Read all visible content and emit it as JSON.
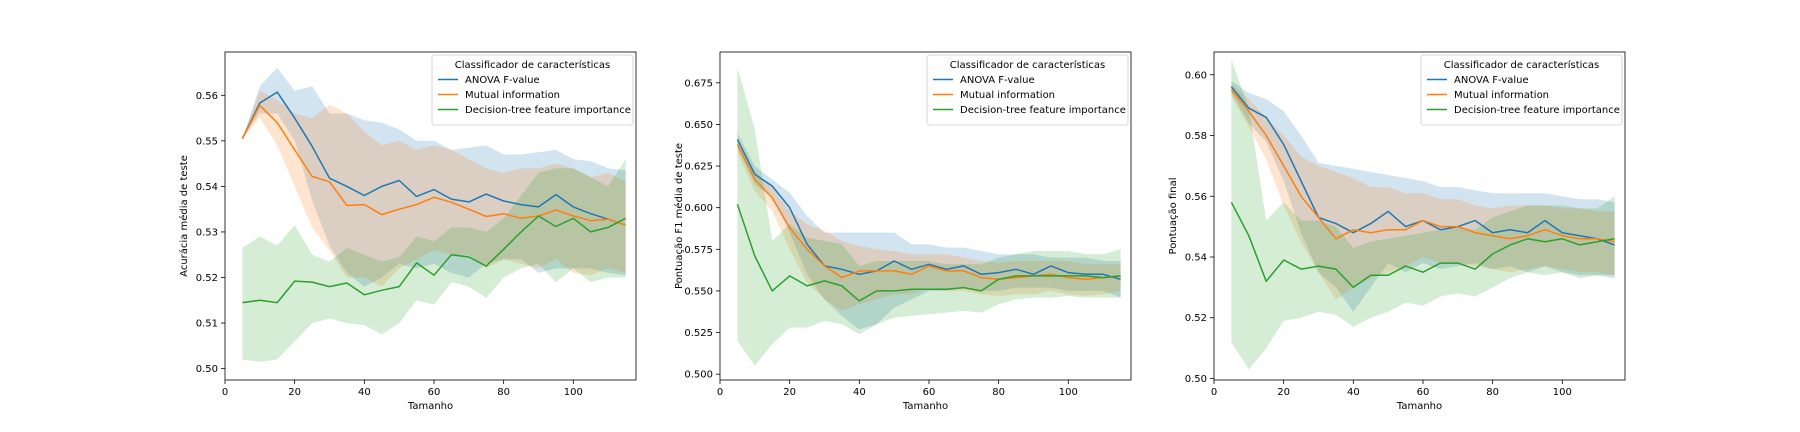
{
  "figure": {
    "legend_title": "Classificador de características"
  },
  "colors": {
    "anova": "#1f77b4",
    "mutual": "#ff7f0e",
    "tree": "#2ca02c"
  },
  "chart_data": [
    {
      "type": "line",
      "xlabel": "Tamanho",
      "ylabel": "Acurácia média de teste",
      "xlim": [
        0,
        118
      ],
      "ylim": [
        0.4975,
        0.5695
      ],
      "xticks": [
        0,
        20,
        40,
        60,
        80,
        100
      ],
      "yticks": [
        0.5,
        0.51,
        0.52,
        0.53,
        0.54,
        0.55,
        0.56
      ],
      "ytick_labels": [
        "0.50",
        "0.51",
        "0.52",
        "0.53",
        "0.54",
        "0.55",
        "0.56"
      ],
      "grid": false,
      "legend": {
        "title": "Classificador de características",
        "position": "top-right"
      },
      "x": [
        5,
        10,
        15,
        20,
        25,
        30,
        35,
        40,
        45,
        50,
        55,
        60,
        65,
        70,
        75,
        80,
        85,
        90,
        95,
        100,
        105,
        110,
        115
      ],
      "series": [
        {
          "name": "ANOVA F-value",
          "color_key": "anova",
          "values": [
            0.5505,
            0.5583,
            0.5607,
            0.555,
            0.5488,
            0.5418,
            0.54,
            0.538,
            0.54,
            0.5413,
            0.5378,
            0.5393,
            0.5372,
            0.5366,
            0.5383,
            0.5368,
            0.536,
            0.5355,
            0.5382,
            0.5355,
            0.534,
            0.5328,
            0.5315
          ],
          "upper": [
            0.5505,
            0.562,
            0.566,
            0.561,
            0.562,
            0.556,
            0.556,
            0.5545,
            0.554,
            0.5525,
            0.55,
            0.55,
            0.548,
            0.5485,
            0.549,
            0.547,
            0.547,
            0.5475,
            0.548,
            0.546,
            0.5455,
            0.544,
            0.5435
          ],
          "lower": [
            0.5505,
            0.556,
            0.556,
            0.55,
            0.537,
            0.527,
            0.521,
            0.518,
            0.52,
            0.523,
            0.522,
            0.523,
            0.521,
            0.52,
            0.523,
            0.524,
            0.524,
            0.521,
            0.522,
            0.522,
            0.522,
            0.521,
            0.5205
          ]
        },
        {
          "name": "Mutual information",
          "color_key": "mutual",
          "values": [
            0.5505,
            0.5578,
            0.554,
            0.548,
            0.5422,
            0.541,
            0.5358,
            0.536,
            0.5338,
            0.535,
            0.536,
            0.5376,
            0.5365,
            0.535,
            0.5334,
            0.534,
            0.533,
            0.5335,
            0.5348,
            0.5335,
            0.5325,
            0.5328,
            0.5315
          ],
          "upper": [
            0.5505,
            0.561,
            0.559,
            0.556,
            0.555,
            0.558,
            0.556,
            0.552,
            0.549,
            0.55,
            0.548,
            0.549,
            0.548,
            0.546,
            0.544,
            0.543,
            0.544,
            0.544,
            0.545,
            0.544,
            0.542,
            0.543,
            0.541
          ],
          "lower": [
            0.5505,
            0.555,
            0.549,
            0.54,
            0.531,
            0.526,
            0.52,
            0.52,
            0.518,
            0.522,
            0.524,
            0.526,
            0.525,
            0.525,
            0.522,
            0.524,
            0.523,
            0.522,
            0.524,
            0.521,
            0.5205,
            0.522,
            0.521
          ]
        },
        {
          "name": "Decision-tree feature importance",
          "color_key": "tree",
          "values": [
            0.5145,
            0.515,
            0.5145,
            0.5192,
            0.519,
            0.518,
            0.5188,
            0.5162,
            0.5172,
            0.518,
            0.5232,
            0.5205,
            0.525,
            0.5245,
            0.5225,
            0.5262,
            0.53,
            0.5335,
            0.5312,
            0.533,
            0.53,
            0.531,
            0.533
          ],
          "upper": [
            0.5265,
            0.529,
            0.527,
            0.5315,
            0.525,
            0.5235,
            0.5265,
            0.525,
            0.5235,
            0.5245,
            0.529,
            0.528,
            0.531,
            0.531,
            0.53,
            0.533,
            0.538,
            0.543,
            0.544,
            0.544,
            0.542,
            0.54,
            0.546
          ],
          "lower": [
            0.502,
            0.5015,
            0.502,
            0.506,
            0.51,
            0.511,
            0.51,
            0.5095,
            0.5075,
            0.51,
            0.515,
            0.514,
            0.519,
            0.518,
            0.5155,
            0.52,
            0.522,
            0.523,
            0.519,
            0.522,
            0.519,
            0.52,
            0.52
          ]
        }
      ]
    },
    {
      "type": "line",
      "xlabel": "Tamanho",
      "ylabel": "Pontuação F1 média de teste",
      "xlim": [
        0,
        118
      ],
      "ylim": [
        0.4965,
        0.6935
      ],
      "xticks": [
        0,
        20,
        40,
        60,
        80,
        100
      ],
      "yticks": [
        0.5,
        0.525,
        0.55,
        0.575,
        0.6,
        0.625,
        0.65,
        0.675
      ],
      "ytick_labels": [
        "0.500",
        "0.525",
        "0.550",
        "0.575",
        "0.600",
        "0.625",
        "0.650",
        "0.675"
      ],
      "grid": false,
      "legend": {
        "title": "Classificador de características",
        "position": "top-right"
      },
      "x": [
        5,
        10,
        15,
        20,
        25,
        30,
        35,
        40,
        45,
        50,
        55,
        60,
        65,
        70,
        75,
        80,
        85,
        90,
        95,
        100,
        105,
        110,
        115
      ],
      "series": [
        {
          "name": "ANOVA F-value",
          "color_key": "anova",
          "values": [
            0.641,
            0.62,
            0.613,
            0.6,
            0.578,
            0.565,
            0.563,
            0.56,
            0.562,
            0.568,
            0.563,
            0.566,
            0.563,
            0.565,
            0.56,
            0.561,
            0.563,
            0.56,
            0.565,
            0.561,
            0.56,
            0.56,
            0.557
          ],
          "upper": [
            0.645,
            0.625,
            0.617,
            0.609,
            0.595,
            0.585,
            0.585,
            0.585,
            0.585,
            0.585,
            0.578,
            0.578,
            0.576,
            0.576,
            0.574,
            0.572,
            0.572,
            0.572,
            0.57,
            0.57,
            0.57,
            0.568,
            0.568
          ],
          "lower": [
            0.636,
            0.614,
            0.606,
            0.585,
            0.56,
            0.545,
            0.535,
            0.527,
            0.53,
            0.54,
            0.545,
            0.55,
            0.55,
            0.552,
            0.55,
            0.55,
            0.552,
            0.552,
            0.552,
            0.55,
            0.55,
            0.55,
            0.546
          ]
        },
        {
          "name": "Mutual information",
          "color_key": "mutual",
          "values": [
            0.638,
            0.617,
            0.606,
            0.588,
            0.575,
            0.565,
            0.558,
            0.562,
            0.562,
            0.562,
            0.56,
            0.565,
            0.562,
            0.562,
            0.558,
            0.557,
            0.558,
            0.559,
            0.56,
            0.558,
            0.557,
            0.558,
            0.559
          ],
          "upper": [
            0.642,
            0.622,
            0.612,
            0.598,
            0.59,
            0.586,
            0.58,
            0.577,
            0.575,
            0.574,
            0.572,
            0.572,
            0.572,
            0.57,
            0.568,
            0.567,
            0.568,
            0.568,
            0.568,
            0.568,
            0.566,
            0.566,
            0.566
          ],
          "lower": [
            0.633,
            0.61,
            0.598,
            0.575,
            0.555,
            0.545,
            0.538,
            0.542,
            0.545,
            0.548,
            0.548,
            0.552,
            0.55,
            0.55,
            0.548,
            0.547,
            0.548,
            0.548,
            0.55,
            0.548,
            0.547,
            0.548,
            0.55
          ]
        },
        {
          "name": "Decision-tree feature importance",
          "color_key": "tree",
          "values": [
            0.602,
            0.571,
            0.55,
            0.559,
            0.553,
            0.556,
            0.553,
            0.544,
            0.55,
            0.55,
            0.551,
            0.551,
            0.551,
            0.552,
            0.55,
            0.557,
            0.559,
            0.559,
            0.559,
            0.559,
            0.559,
            0.558,
            0.559
          ],
          "upper": [
            0.684,
            0.647,
            0.58,
            0.59,
            0.582,
            0.58,
            0.578,
            0.565,
            0.568,
            0.568,
            0.568,
            0.568,
            0.566,
            0.566,
            0.566,
            0.57,
            0.572,
            0.574,
            0.574,
            0.574,
            0.572,
            0.572,
            0.575
          ],
          "lower": [
            0.52,
            0.505,
            0.518,
            0.528,
            0.528,
            0.532,
            0.53,
            0.524,
            0.53,
            0.534,
            0.535,
            0.536,
            0.537,
            0.538,
            0.537,
            0.542,
            0.545,
            0.546,
            0.546,
            0.547,
            0.546,
            0.546,
            0.546
          ]
        }
      ]
    },
    {
      "type": "line",
      "xlabel": "Tamanho",
      "ylabel": "Pontuação final",
      "xlim": [
        0,
        118
      ],
      "ylim": [
        0.4995,
        0.6075
      ],
      "xticks": [
        0,
        20,
        40,
        60,
        80,
        100
      ],
      "yticks": [
        0.5,
        0.52,
        0.54,
        0.56,
        0.58,
        0.6
      ],
      "ytick_labels": [
        "0.50",
        "0.52",
        "0.54",
        "0.56",
        "0.58",
        "0.60"
      ],
      "grid": false,
      "legend": {
        "title": "Classificador de características",
        "position": "top-right"
      },
      "x": [
        5,
        10,
        15,
        20,
        25,
        30,
        35,
        40,
        45,
        50,
        55,
        60,
        65,
        70,
        75,
        80,
        85,
        90,
        95,
        100,
        105,
        110,
        115
      ],
      "series": [
        {
          "name": "ANOVA F-value",
          "color_key": "anova",
          "values": [
            0.596,
            0.589,
            0.586,
            0.577,
            0.565,
            0.553,
            0.551,
            0.548,
            0.551,
            0.555,
            0.55,
            0.552,
            0.549,
            0.55,
            0.552,
            0.548,
            0.549,
            0.548,
            0.552,
            0.548,
            0.547,
            0.546,
            0.544
          ],
          "upper": [
            0.598,
            0.594,
            0.592,
            0.588,
            0.58,
            0.571,
            0.57,
            0.569,
            0.568,
            0.567,
            0.566,
            0.565,
            0.563,
            0.563,
            0.562,
            0.561,
            0.561,
            0.561,
            0.561,
            0.56,
            0.559,
            0.559,
            0.558
          ],
          "lower": [
            0.594,
            0.584,
            0.578,
            0.565,
            0.548,
            0.535,
            0.53,
            0.522,
            0.53,
            0.538,
            0.535,
            0.538,
            0.536,
            0.537,
            0.538,
            0.536,
            0.537,
            0.535,
            0.537,
            0.535,
            0.534,
            0.534,
            0.533
          ]
        },
        {
          "name": "Mutual information",
          "color_key": "mutual",
          "values": [
            0.595,
            0.588,
            0.58,
            0.57,
            0.56,
            0.553,
            0.546,
            0.549,
            0.548,
            0.549,
            0.549,
            0.552,
            0.55,
            0.55,
            0.548,
            0.547,
            0.546,
            0.547,
            0.549,
            0.547,
            0.546,
            0.546,
            0.545
          ],
          "upper": [
            0.597,
            0.592,
            0.586,
            0.58,
            0.573,
            0.57,
            0.568,
            0.566,
            0.563,
            0.563,
            0.561,
            0.561,
            0.559,
            0.559,
            0.557,
            0.556,
            0.557,
            0.557,
            0.557,
            0.556,
            0.556,
            0.555,
            0.555
          ],
          "lower": [
            0.593,
            0.583,
            0.572,
            0.557,
            0.545,
            0.535,
            0.526,
            0.53,
            0.533,
            0.535,
            0.537,
            0.54,
            0.538,
            0.538,
            0.537,
            0.536,
            0.535,
            0.536,
            0.537,
            0.536,
            0.535,
            0.535,
            0.534
          ]
        },
        {
          "name": "Decision-tree feature importance",
          "color_key": "tree",
          "values": [
            0.558,
            0.547,
            0.532,
            0.539,
            0.536,
            0.537,
            0.536,
            0.53,
            0.534,
            0.534,
            0.537,
            0.535,
            0.538,
            0.538,
            0.536,
            0.541,
            0.544,
            0.546,
            0.545,
            0.546,
            0.544,
            0.545,
            0.546
          ],
          "upper": [
            0.605,
            0.589,
            0.552,
            0.558,
            0.552,
            0.552,
            0.55,
            0.543,
            0.545,
            0.546,
            0.547,
            0.548,
            0.549,
            0.55,
            0.549,
            0.553,
            0.555,
            0.557,
            0.557,
            0.557,
            0.556,
            0.556,
            0.56
          ],
          "lower": [
            0.512,
            0.503,
            0.51,
            0.519,
            0.52,
            0.522,
            0.521,
            0.517,
            0.52,
            0.522,
            0.525,
            0.524,
            0.527,
            0.528,
            0.527,
            0.53,
            0.533,
            0.535,
            0.534,
            0.535,
            0.533,
            0.534,
            0.534
          ]
        }
      ]
    }
  ]
}
